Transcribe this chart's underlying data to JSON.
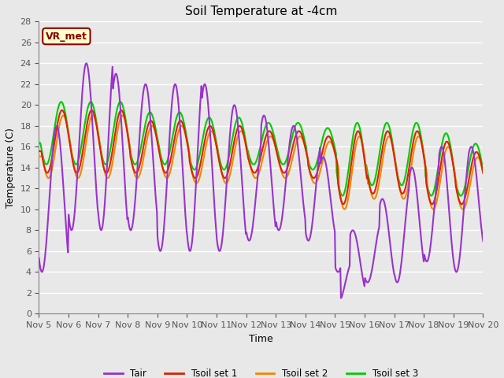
{
  "title": "Soil Temperature at -4cm",
  "xlabel": "Time",
  "ylabel": "Temperature (C)",
  "ylim": [
    0,
    28
  ],
  "yticks": [
    0,
    2,
    4,
    6,
    8,
    10,
    12,
    14,
    16,
    18,
    20,
    22,
    24,
    26,
    28
  ],
  "colors": {
    "Tair": "#9933cc",
    "Tsoil1": "#dd2200",
    "Tsoil2": "#ee8800",
    "Tsoil3": "#00cc00"
  },
  "legend_labels": [
    "Tair",
    "Tsoil set 1",
    "Tsoil set 2",
    "Tsoil set 3"
  ],
  "annotation_text": "VR_met",
  "annotation_color": "#8B0000",
  "annotation_bg": "#ffffcc",
  "bg_color": "#e8e8e8",
  "plot_bg": "#e8e8e8",
  "xtick_labels": [
    "Nov 5",
    "Nov 6",
    "Nov 7",
    "Nov 8",
    "Nov 9",
    "Nov 10",
    "Nov 11",
    "Nov 12",
    "Nov 13",
    "Nov 14",
    "Nov 15",
    "Nov 16",
    "Nov 17",
    "Nov 18",
    "Nov 19",
    "Nov 20"
  ]
}
